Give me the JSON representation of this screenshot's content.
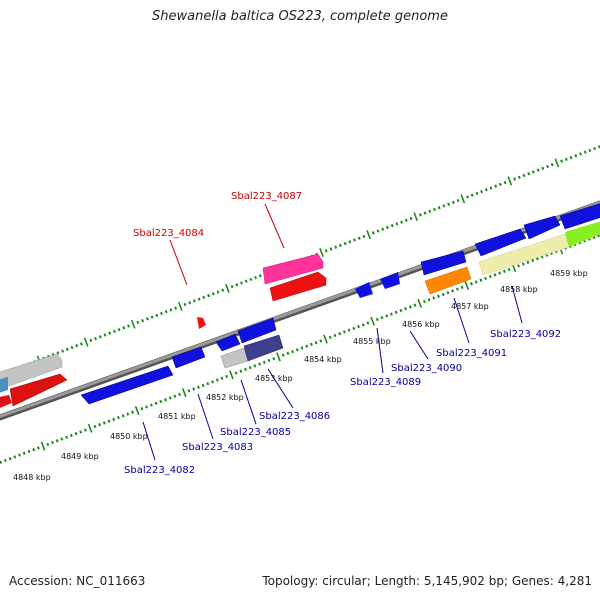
{
  "title": "Shewanella baltica OS223, complete genome",
  "footer": {
    "accession_label": "Accession:",
    "accession": "NC_011663",
    "topology_label": "Topology:",
    "topology": "circular",
    "length_label": "Length:",
    "length": "5,145,902 bp",
    "genes_label": "Genes:",
    "genes": "4,281"
  },
  "colors": {
    "backbone": "#808080",
    "tick": "#1a8a1a",
    "tick_label": "#111111",
    "forward_gene_label": "#cc0000",
    "reverse_gene_label": "#000099"
  },
  "kbp_labels": [
    "4848 kbp",
    "4849 kbp",
    "4850 kbp",
    "4851 kbp",
    "4852 kbp",
    "4853 kbp",
    "4854 kbp",
    "4855 kbp",
    "4856 kbp",
    "4857 kbp",
    "4858 kbp",
    "4859 kbp"
  ],
  "genes": [
    {
      "name": "Sbal223_4084",
      "strand": "forward",
      "color": "#dd1111"
    },
    {
      "name": "Sbal223_4087",
      "strand": "forward",
      "color": "#dd1111"
    },
    {
      "name": "Sbal223_4082",
      "strand": "reverse",
      "color": "#1111dd"
    },
    {
      "name": "Sbal223_4083",
      "strand": "reverse",
      "color": "#1111dd"
    },
    {
      "name": "Sbal223_4085",
      "strand": "reverse",
      "color": "#b0b0b0"
    },
    {
      "name": "Sbal223_4086",
      "strand": "reverse",
      "color": "#3f3f8f"
    },
    {
      "name": "Sbal223_4089",
      "strand": "reverse",
      "color": "#1111dd"
    },
    {
      "name": "Sbal223_4090",
      "strand": "reverse",
      "color": "#1111dd"
    },
    {
      "name": "Sbal223_4091",
      "strand": "reverse",
      "color": "#ff8800"
    },
    {
      "name": "Sbal223_4092",
      "strand": "reverse",
      "color": "#eeeeaa"
    }
  ]
}
